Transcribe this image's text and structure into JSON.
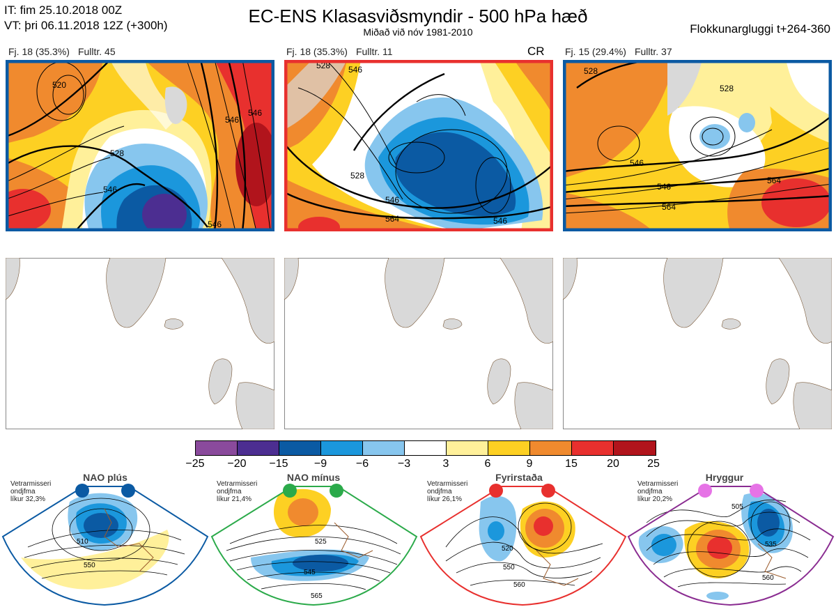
{
  "header": {
    "it_line": "IT: fim 25.10.2018 00Z",
    "vt_line": "VT: þri 06.11.2018 12Z  (+300h)",
    "title": "EC-ENS Klasasviðsmyndir - 500 hPa hæð",
    "subtitle": "Miðað við nóv 1981-2010",
    "window": "Flokkunargluggi t+264-360"
  },
  "clusters": [
    {
      "count": "Fj. 18 (35.3%)",
      "rep": "Fulltr. 45",
      "frame_color": "#0b5aa3",
      "contours": [
        "520",
        "528",
        "546",
        "546",
        "546",
        "546"
      ]
    },
    {
      "count": "Fj. 18 (35.3%)",
      "rep": "Fulltr. 11",
      "frame_color": "#e8302e",
      "tag": "CR",
      "contours": [
        "528",
        "528",
        "546",
        "546",
        "564",
        "546"
      ]
    },
    {
      "count": "Fj. 15 (29.4%)",
      "rep": "Fulltr. 37",
      "frame_color": "#0b5aa3",
      "contours": [
        "528",
        "528",
        "546",
        "546",
        "564",
        "564"
      ]
    }
  ],
  "colorbar": {
    "ticks": [
      "−25",
      "−20",
      "−15",
      "−9",
      "−6",
      "−3",
      "3",
      "6",
      "9",
      "15",
      "20",
      "25"
    ],
    "colors": [
      "#8a4a9c",
      "#4c2e91",
      "#0b5aa3",
      "#1b97dc",
      "#87c6ee",
      "#ffffff",
      "#fff09a",
      "#fdd023",
      "#f08a2e",
      "#e8302e",
      "#b1141c"
    ]
  },
  "regimes": [
    {
      "name": "NAO plús",
      "note": [
        "Vetrarmisseri",
        "ondjfma",
        "líkur 32,3%"
      ],
      "dot_color": "#0b5aa3",
      "frame_color": "#0b5aa3",
      "contours": [
        "510",
        "550"
      ]
    },
    {
      "name": "NAO mínus",
      "note": [
        "Vetrarmisseri",
        "ondjfma",
        "líkur 21,4%"
      ],
      "dot_color": "#2baa4a",
      "frame_color": "#2baa4a",
      "contours": [
        "525",
        "545",
        "565"
      ]
    },
    {
      "name": "Fyrirstaða",
      "note": [
        "Vetrarmisseri",
        "ondjfma",
        "líkur 26,1%"
      ],
      "dot_color": "#e8302e",
      "frame_color": "#e8302e",
      "contours": [
        "520",
        "550",
        "560"
      ]
    },
    {
      "name": "Hryggur",
      "note": [
        "Vetrarmisseri",
        "ondjfma",
        "líkur 20,2%"
      ],
      "dot_color": "#e673e6",
      "frame_color": "#8a2c91",
      "contours": [
        "505",
        "535",
        "560"
      ]
    }
  ]
}
